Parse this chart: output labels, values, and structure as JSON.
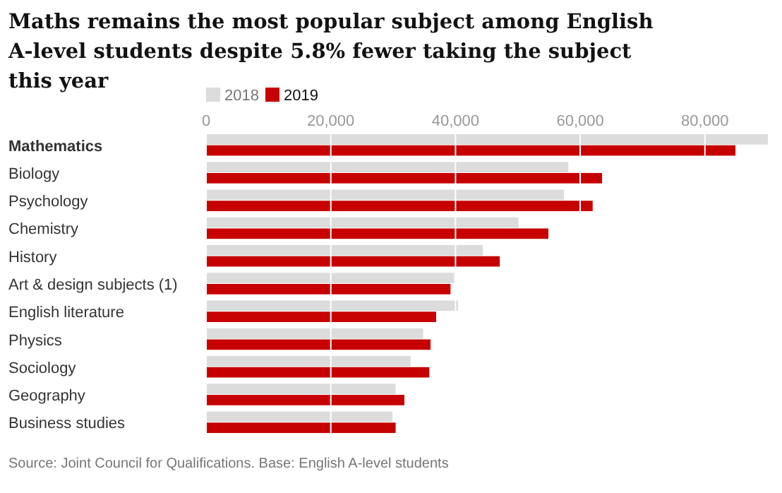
{
  "chart_data": {
    "type": "bar",
    "orientation": "horizontal",
    "title": "Maths remains the most popular subject among English A-level students despite 5.8% fewer taking the subject this year",
    "categories": [
      "Mathematics",
      "Biology",
      "Psychology",
      "Chemistry",
      "History",
      "Art & design subjects (1)",
      "English literature",
      "Physics",
      "Sociology",
      "Geography",
      "Business studies"
    ],
    "series": [
      {
        "name": "2018",
        "color": "#dcdcdc",
        "values": [
          90100,
          58100,
          57400,
          50100,
          44400,
          39800,
          40400,
          34800,
          32800,
          30400,
          29900
        ]
      },
      {
        "name": "2019",
        "color": "#c70000",
        "values": [
          84900,
          63500,
          62000,
          54900,
          47100,
          39200,
          36900,
          36000,
          35800,
          31800,
          30400
        ]
      }
    ],
    "xlim": [
      0,
      90100
    ],
    "xticks": [
      {
        "value": 0,
        "label": "0"
      },
      {
        "value": 20000,
        "label": "20,000"
      },
      {
        "value": 40000,
        "label": "40,000"
      },
      {
        "value": 60000,
        "label": "60,000"
      },
      {
        "value": 80000,
        "label": "80,000"
      }
    ],
    "grid": "x",
    "legend": "top left",
    "annotations": [
      "Source: Joint Council for Qualifications. Base: English A-level students"
    ]
  }
}
